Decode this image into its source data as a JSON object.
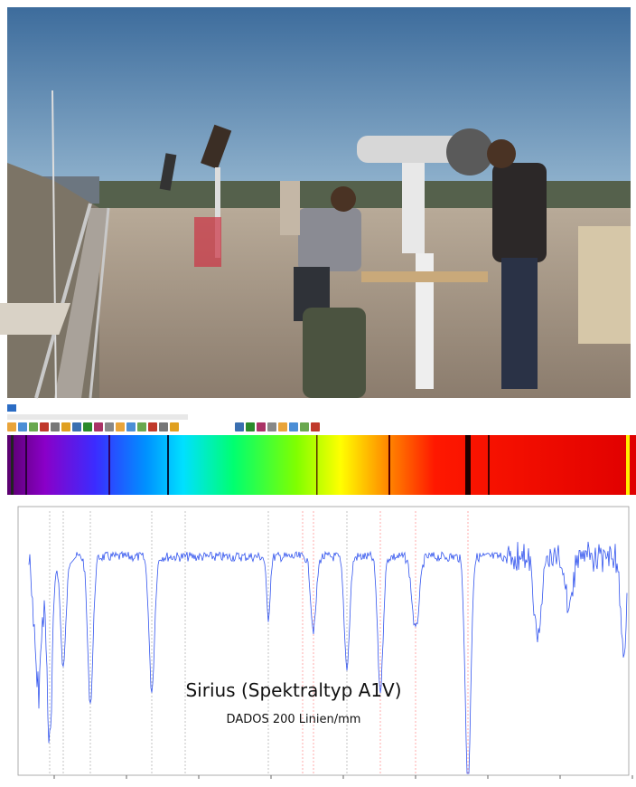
{
  "caption": {
    "title": "Sirius (Spektraltyp A1V)",
    "subtitle": "DADOS 200 Linien/mm"
  }
}
